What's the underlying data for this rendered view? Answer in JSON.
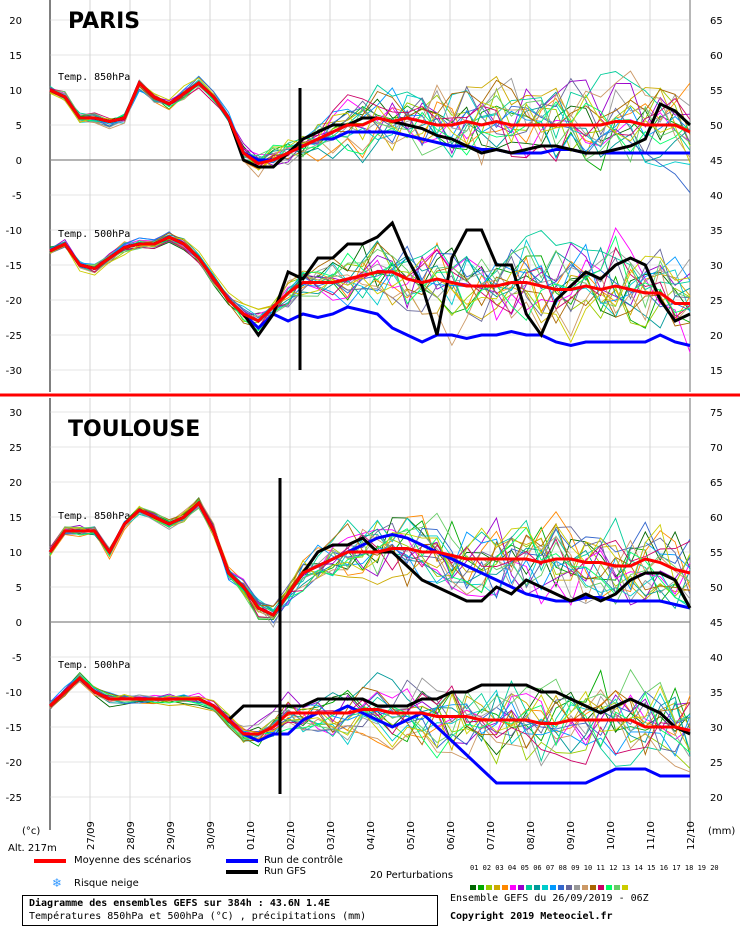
{
  "chart_data": {
    "type": "line",
    "dates": [
      "27/09",
      "28/09",
      "29/09",
      "30/09",
      "01/10",
      "02/10",
      "03/10",
      "04/10",
      "05/10",
      "06/10",
      "07/10",
      "08/10",
      "09/10",
      "10/10",
      "11/10",
      "12/10"
    ],
    "panels": [
      {
        "city": "PARIS",
        "left_ticks": [
          "20",
          "15",
          "10",
          "5",
          "0",
          "-5",
          "-10",
          "-15",
          "-20",
          "-25",
          "-30"
        ],
        "right_ticks": [
          "65",
          "60",
          "55",
          "50",
          "45",
          "40",
          "35",
          "30",
          "25",
          "20",
          "15"
        ],
        "t850_label": "Temp. 850hPa",
        "t500_label": "Temp. 500hPa",
        "ylim": [
          -32,
          22
        ],
        "t850_mean": [
          10,
          9,
          6,
          6,
          5.5,
          6,
          11,
          9,
          8,
          9.5,
          11,
          9,
          6,
          1,
          -0.5,
          0,
          1,
          2,
          3,
          4,
          5,
          5,
          6,
          5.5,
          6,
          5.5,
          5,
          5,
          5.5,
          5,
          5.5,
          5,
          5,
          5,
          5,
          5,
          5,
          5,
          5.5,
          5.5,
          5,
          5,
          5,
          4
        ],
        "t850_control": [
          10,
          9,
          6,
          6,
          5.5,
          6,
          11,
          9,
          8,
          9.5,
          11,
          9,
          6,
          1,
          0,
          0,
          1,
          2,
          3,
          3,
          4,
          4,
          4,
          4,
          3.5,
          3,
          2.5,
          2,
          2,
          1.5,
          1.5,
          1,
          1,
          1,
          1.5,
          1.5,
          1,
          1,
          1,
          1,
          1,
          1,
          1,
          1
        ],
        "t850_gfs": [
          10,
          9,
          6,
          6,
          5.5,
          6,
          11,
          9,
          8,
          9.5,
          11,
          9,
          6,
          0,
          -1,
          -1,
          1,
          3,
          4,
          5,
          5,
          6,
          6,
          5.5,
          5,
          4.5,
          3.5,
          3,
          2,
          1,
          1.5,
          1,
          1.5,
          2,
          2,
          1.5,
          1,
          1,
          1.5,
          2,
          3,
          8,
          7,
          5
        ],
        "t500_mean": [
          -13,
          -12,
          -15,
          -15.5,
          -14,
          -12.5,
          -12,
          -12,
          -11,
          -12,
          -14,
          -17,
          -20,
          -22,
          -23,
          -21,
          -19,
          -17.5,
          -17.5,
          -17.5,
          -17,
          -16.5,
          -16,
          -16,
          -17,
          -17.5,
          -17,
          -17.5,
          -18,
          -18,
          -18,
          -17.5,
          -17.5,
          -18,
          -18.5,
          -18.5,
          -18,
          -18.5,
          -18,
          -18.5,
          -19,
          -19,
          -20.5,
          -20.5
        ],
        "t500_control": [
          -13,
          -12,
          -15,
          -15.5,
          -14,
          -12.5,
          -12,
          -12,
          -11,
          -12,
          -14,
          -17,
          -20,
          -22,
          -24,
          -22,
          -23,
          -22,
          -22.5,
          -22,
          -21,
          -21.5,
          -22,
          -24,
          -25,
          -26,
          -25,
          -25,
          -25.5,
          -25,
          -25,
          -24.5,
          -25,
          -25,
          -26,
          -26.5,
          -26,
          -26,
          -26,
          -26,
          -26,
          -25,
          -26,
          -26.5
        ],
        "t500_gfs": [
          -13,
          -12,
          -15,
          -15.5,
          -14,
          -12.5,
          -12,
          -12,
          -11,
          -12,
          -14,
          -17,
          -20,
          -22,
          -25,
          -22,
          -16,
          -17,
          -14,
          -14,
          -12,
          -12,
          -11,
          -9,
          -14,
          -18,
          -25,
          -14,
          -10,
          -10,
          -15,
          -15,
          -22,
          -25,
          -20,
          -18,
          -16,
          -17,
          -15,
          -14,
          -15,
          -20,
          -23,
          -22
        ]
      },
      {
        "city": "TOULOUSE",
        "left_ticks": [
          "30",
          "25",
          "20",
          "15",
          "10",
          "5",
          "0",
          "-5",
          "-10",
          "-15",
          "-20",
          "-25"
        ],
        "right_ticks": [
          "75",
          "70",
          "65",
          "60",
          "55",
          "50",
          "45",
          "40",
          "35",
          "30",
          "25",
          "20"
        ],
        "t850_label": "Temp. 850hPa",
        "t500_label": "Temp. 500hPa",
        "ylim": [
          -27,
          32
        ],
        "t850_mean": [
          10,
          13,
          13,
          13,
          10,
          14,
          16,
          15,
          14,
          15,
          17,
          13,
          7,
          5,
          2,
          1,
          4,
          7,
          8,
          9,
          10,
          10,
          10,
          10.5,
          10.5,
          10,
          10,
          9.5,
          9,
          9,
          9,
          9,
          9,
          8.5,
          9,
          9,
          8.5,
          8.5,
          8,
          8,
          9,
          8.5,
          7.5,
          7
        ],
        "t850_control": [
          10,
          13,
          13,
          13,
          10,
          14,
          16,
          15,
          14,
          15,
          17,
          13,
          7,
          5,
          2,
          1,
          4,
          7,
          8,
          9,
          10,
          11,
          12,
          12.5,
          12,
          11,
          10,
          9,
          8,
          7,
          6,
          5,
          4,
          3.5,
          3,
          3,
          3.5,
          3.5,
          3,
          3,
          3,
          3,
          2.5,
          2
        ],
        "t850_gfs": [
          10,
          13,
          13,
          13,
          10,
          14,
          16,
          15,
          14,
          15,
          17,
          13,
          7,
          5,
          2,
          1,
          4,
          7,
          10,
          11,
          11,
          12,
          10,
          10,
          8,
          6,
          5,
          4,
          3,
          3,
          5,
          4,
          6,
          5,
          4,
          3,
          4,
          3,
          4,
          6,
          7,
          7,
          6,
          2
        ],
        "t500_mean": [
          -12,
          -10,
          -8,
          -10,
          -11,
          -11,
          -11,
          -11,
          -11,
          -11,
          -11,
          -12,
          -14,
          -16,
          -16,
          -15,
          -13,
          -13,
          -13,
          -13,
          -13,
          -12.5,
          -12.5,
          -13,
          -13,
          -13,
          -13.5,
          -13.5,
          -13.5,
          -14,
          -14,
          -14,
          -14,
          -14.5,
          -14.5,
          -14,
          -14,
          -14,
          -14,
          -14,
          -15,
          -15,
          -15,
          -15.5
        ],
        "t500_control": [
          -12,
          -10,
          -8,
          -10,
          -11,
          -11,
          -11,
          -11,
          -11,
          -11,
          -11,
          -12,
          -14,
          -16,
          -17,
          -16,
          -16,
          -14,
          -13,
          -13,
          -12,
          -13,
          -14,
          -15,
          -14,
          -13,
          -15,
          -17,
          -19,
          -21,
          -23,
          -23,
          -23,
          -23,
          -23,
          -23,
          -23,
          -22,
          -21,
          -21,
          -21,
          -22,
          -22,
          -22
        ],
        "t500_gfs": [
          -12,
          -10,
          -8,
          -10,
          -11,
          -11,
          -11,
          -11,
          -11,
          -11,
          -11,
          -12,
          -14,
          -12,
          -12,
          -12,
          -12,
          -12,
          -11,
          -11,
          -11,
          -11,
          -12,
          -12,
          -12,
          -11,
          -11,
          -10,
          -10,
          -9,
          -9,
          -9,
          -9,
          -10,
          -10,
          -11,
          -12,
          -13,
          -12,
          -11,
          -12,
          -13,
          -15,
          -16
        ]
      }
    ],
    "right_axis_unit": "(mm)",
    "left_axis_unit": "(°c)",
    "altitude": "Alt. 217m"
  },
  "legend": {
    "mean_label": "Moyenne des scénarios",
    "mean_color": "#ff0000",
    "control_label": "Run de contrôle",
    "control_color": "#0000ff",
    "gfs_label": "Run GFS",
    "gfs_color": "#000000",
    "snow_label": "Risque neige",
    "perturbations_label": "20 Perturbations",
    "perturbation_numbers": [
      "01",
      "02",
      "03",
      "04",
      "05",
      "06",
      "07",
      "08",
      "09",
      "10",
      "11",
      "12",
      "13",
      "14",
      "15",
      "16",
      "17",
      "18",
      "19",
      "20"
    ],
    "perturbation_colors": [
      "#006600",
      "#00aa00",
      "#99cc00",
      "#ccaa00",
      "#ff8800",
      "#ff00ff",
      "#9900cc",
      "#00cc99",
      "#009999",
      "#00cccc",
      "#0099ff",
      "#3366cc",
      "#666699",
      "#999999",
      "#cc9966",
      "#aa6600",
      "#cc0066",
      "#00ff66",
      "#66cc66",
      "#cccc00"
    ]
  },
  "footer": {
    "line1": "Diagramme des ensembles GEFS sur 384h : 43.6N 1.4E",
    "line2": "Températures 850hPa et 500hPa (°C) , précipitations (mm)",
    "run": "Ensemble GEFS du 26/09/2019 - 06Z",
    "copyright": "Copyright 2019 Meteociel.fr"
  }
}
